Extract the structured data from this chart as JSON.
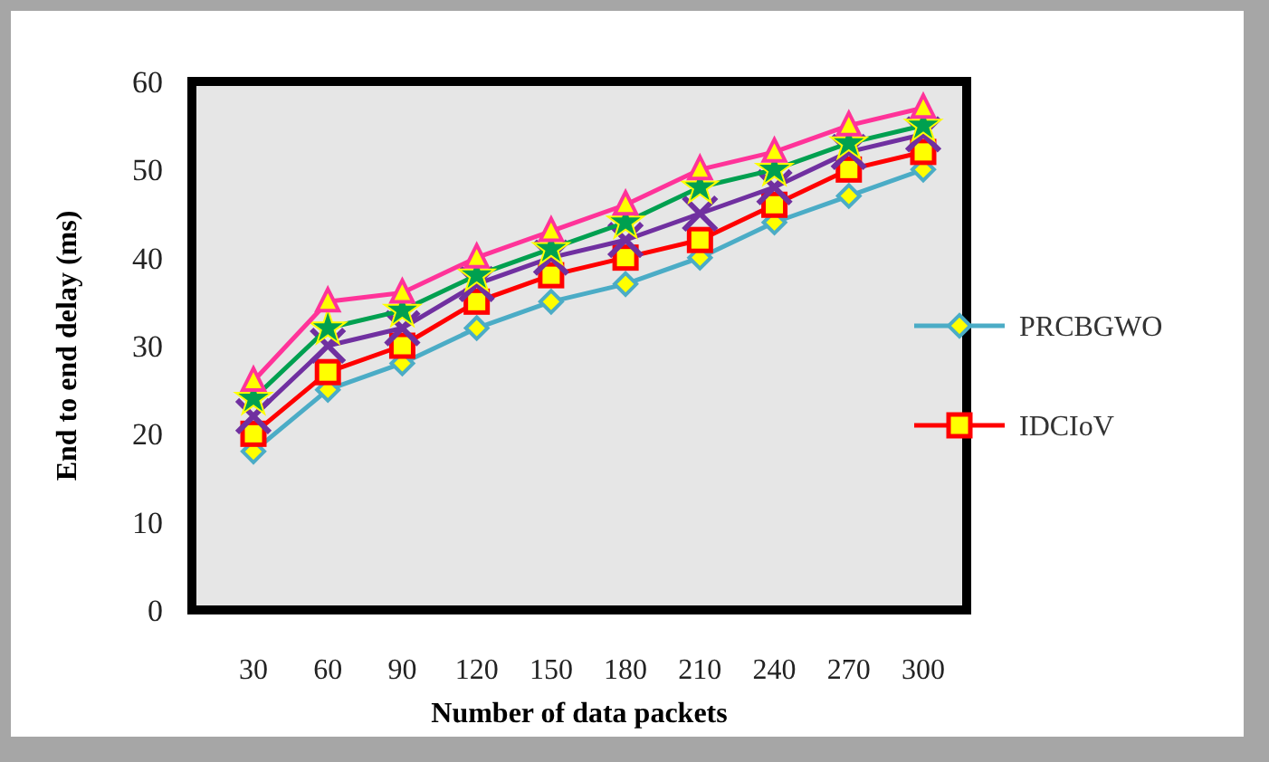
{
  "chart_data": {
    "type": "line",
    "xlabel": "Number of data packets",
    "ylabel": "End to end delay (ms)",
    "categories": [
      "30",
      "60",
      "90",
      "120",
      "150",
      "180",
      "210",
      "240",
      "270",
      "300"
    ],
    "ylim": [
      0,
      60
    ],
    "yticks": [
      0,
      10,
      20,
      30,
      40,
      50,
      60
    ],
    "grid": false,
    "legend": "right",
    "series": [
      {
        "name": "PRCBGWO",
        "color": "#4bacc6",
        "marker": "diamond",
        "values": [
          18,
          25,
          28,
          32,
          35,
          37,
          40,
          44,
          47,
          50
        ]
      },
      {
        "name": "IDCIoV",
        "color": "#ff0000",
        "marker": "square",
        "values": [
          20,
          27,
          30,
          35,
          38,
          40,
          42,
          46,
          50,
          52
        ]
      },
      {
        "color": "#7030a0",
        "marker": "cross",
        "values": [
          22,
          30,
          32,
          37,
          40,
          42,
          45,
          48,
          52,
          54
        ]
      },
      {
        "color": "#00a050",
        "marker": "star",
        "values": [
          24,
          32,
          34,
          38,
          41,
          44,
          48,
          50,
          53,
          55
        ]
      },
      {
        "color": "#ff3399",
        "marker": "triangle",
        "values": [
          26,
          35,
          36,
          40,
          43,
          46,
          50,
          52,
          55,
          57
        ]
      }
    ]
  }
}
